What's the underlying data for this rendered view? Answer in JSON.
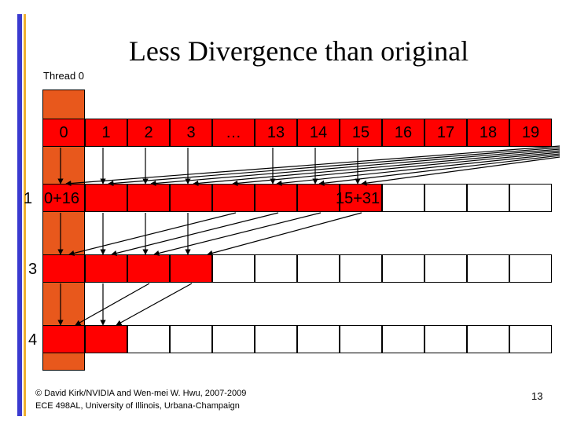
{
  "slide": {
    "title": "Less Divergence than original",
    "thread_label": "Thread 0",
    "row0_labels": [
      "0",
      "1",
      "2",
      "3",
      "…",
      "13",
      "14",
      "15",
      "16",
      "17",
      "18",
      "19"
    ],
    "row1_label_left": "0+16",
    "row1_label_right": "15+31",
    "row_prefix_1": "1",
    "row_prefix_3": "3",
    "row_prefix_4": "4",
    "footer_line1": "© David Kirk/NVIDIA and Wen-mei W. Hwu, 2007-2009",
    "footer_line2": "ECE 498AL, University of Illinois, Urbana-Champaign",
    "page_number": "13"
  },
  "colors": {
    "thread_column": "#e8581c",
    "active_cell": "#ff0000",
    "inactive_cell": "#ffffff",
    "accent_blue": "#3a3ad0",
    "accent_gold": "#f0b030"
  }
}
